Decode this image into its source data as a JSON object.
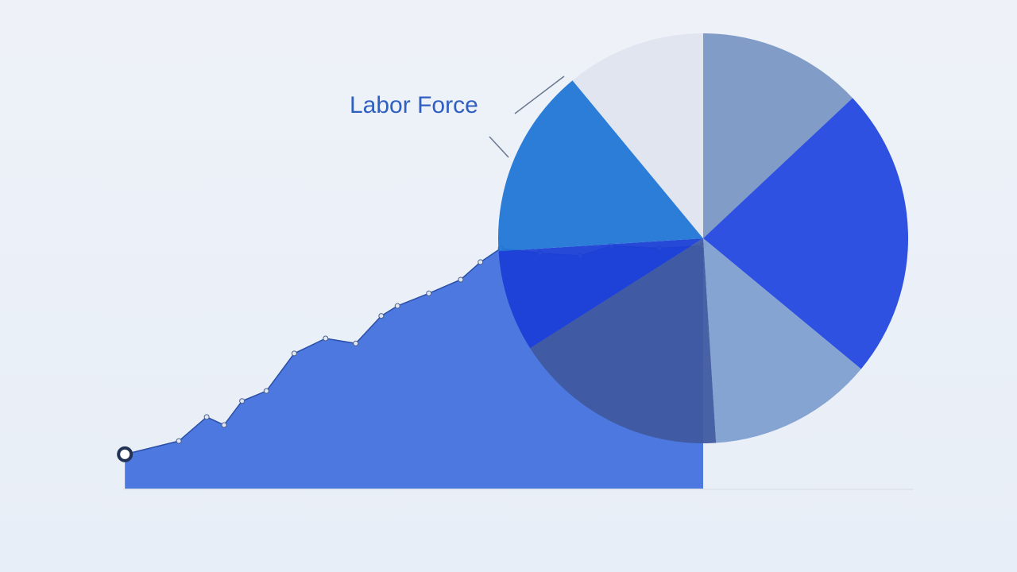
{
  "chart_data": [
    {
      "type": "area",
      "color": "#4d78e0",
      "x": [
        0.3,
        9.6,
        14.4,
        17.4,
        20.5,
        24.7,
        29.5,
        34.9,
        40.1,
        44.5,
        47.3,
        52.7,
        58.2,
        61.6,
        65.1,
        71.9,
        78.8,
        84.2,
        92.5,
        100
      ],
      "values": [
        13.7,
        19,
        28.6,
        25.4,
        35,
        39,
        54,
        60,
        58,
        69,
        73,
        78,
        83.5,
        90.5,
        96,
        94,
        93,
        97,
        96,
        97
      ],
      "xlim": [
        0,
        100
      ],
      "ylim": [
        0,
        100
      ]
    },
    {
      "type": "pie",
      "annotation": "Labor Force",
      "values": [
        13,
        23,
        13,
        17,
        8,
        15,
        11
      ],
      "colors": [
        "#7a97c4",
        "#2448e0",
        "#7f9fd0",
        "#3f5aa0",
        "#1b3fd6",
        "#2176d6",
        "#dfe4ee"
      ]
    }
  ]
}
